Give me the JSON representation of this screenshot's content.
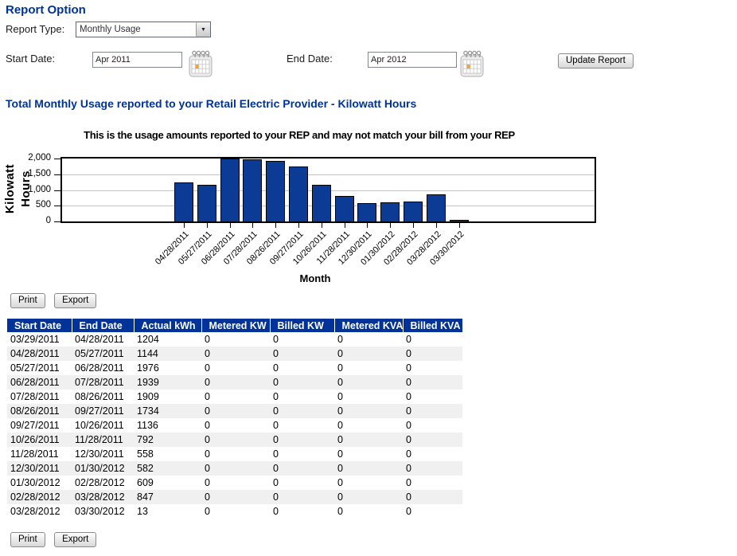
{
  "page_title": "Report Option",
  "report_type": {
    "label": "Report Type:",
    "value": "Monthly Usage"
  },
  "filters": {
    "start_date": {
      "label": "Start Date:",
      "value": "Apr 2011"
    },
    "end_date": {
      "label": "End Date:",
      "value": "Apr 2012"
    },
    "update_button_label": "Update Report"
  },
  "section_heading": "Total Monthly Usage reported to your Retail Electric Provider - Kilowatt Hours",
  "chart_data": {
    "type": "bar",
    "title": "This is the usage amounts reported to your REP and may not match your bill from your REP",
    "xlabel": "Month",
    "ylabel": "Kilowatt Hours",
    "ylabel_lines": [
      "Kilowatt",
      "Hours"
    ],
    "categories": [
      "04/28/2011",
      "05/27/2011",
      "06/28/2011",
      "07/28/2011",
      "08/26/2011",
      "09/27/2011",
      "10/26/2011",
      "11/28/2011",
      "12/30/2011",
      "01/30/2012",
      "02/28/2012",
      "03/28/2012",
      "03/30/2012"
    ],
    "values": [
      1204,
      1144,
      1976,
      1939,
      1909,
      1734,
      1136,
      792,
      558,
      582,
      609,
      847,
      13
    ],
    "ylim": [
      0,
      2000
    ],
    "yticks": [
      0,
      500,
      1000,
      1500,
      2000
    ],
    "ytick_labels": [
      "0",
      "500",
      "1,000",
      "1,500",
      "2,000"
    ],
    "bar_color": "#0c3b96",
    "grid": true,
    "legend": "none"
  },
  "toolbar": {
    "print_label": "Print",
    "export_label": "Export"
  },
  "table": {
    "headers": [
      "Start Date",
      "End Date",
      "Actual kWh",
      "Metered KW",
      "Billed KW",
      "Metered KVA",
      "Billed KVA"
    ],
    "rows": [
      [
        "03/29/2011",
        "04/28/2011",
        "1204",
        "0",
        "0",
        "0",
        "0"
      ],
      [
        "04/28/2011",
        "05/27/2011",
        "1144",
        "0",
        "0",
        "0",
        "0"
      ],
      [
        "05/27/2011",
        "06/28/2011",
        "1976",
        "0",
        "0",
        "0",
        "0"
      ],
      [
        "06/28/2011",
        "07/28/2011",
        "1939",
        "0",
        "0",
        "0",
        "0"
      ],
      [
        "07/28/2011",
        "08/26/2011",
        "1909",
        "0",
        "0",
        "0",
        "0"
      ],
      [
        "08/26/2011",
        "09/27/2011",
        "1734",
        "0",
        "0",
        "0",
        "0"
      ],
      [
        "09/27/2011",
        "10/26/2011",
        "1136",
        "0",
        "0",
        "0",
        "0"
      ],
      [
        "10/26/2011",
        "11/28/2011",
        "792",
        "0",
        "0",
        "0",
        "0"
      ],
      [
        "11/28/2011",
        "12/30/2011",
        "558",
        "0",
        "0",
        "0",
        "0"
      ],
      [
        "12/30/2011",
        "01/30/2012",
        "582",
        "0",
        "0",
        "0",
        "0"
      ],
      [
        "01/30/2012",
        "02/28/2012",
        "609",
        "0",
        "0",
        "0",
        "0"
      ],
      [
        "02/28/2012",
        "03/28/2012",
        "847",
        "0",
        "0",
        "0",
        "0"
      ],
      [
        "03/28/2012",
        "03/30/2012",
        "13",
        "0",
        "0",
        "0",
        "0"
      ]
    ]
  },
  "icons": {
    "calendar": "calendar-icon",
    "dropdown_arrow": "▼"
  },
  "colors": {
    "heading": "#003399",
    "table_header_bg": "#003399",
    "bar_fill": "#0c3b96",
    "row_alt": "#f0f0f0",
    "gridline": "#c3c3c3"
  }
}
